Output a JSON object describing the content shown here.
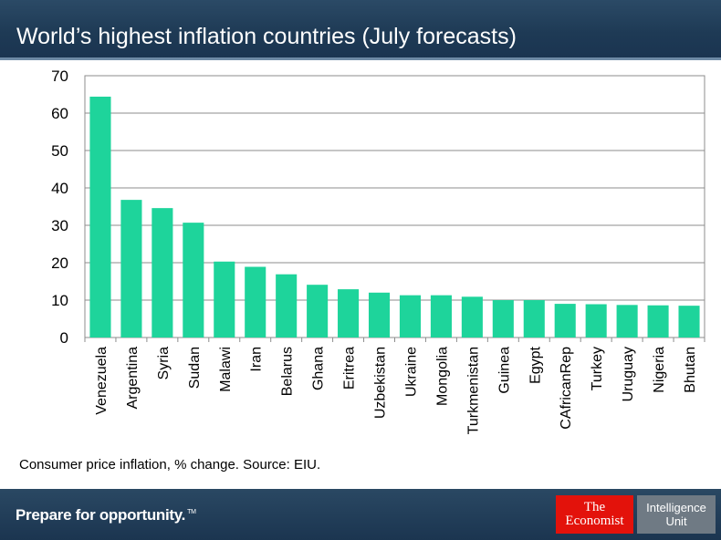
{
  "header": {
    "title": "World’s highest inflation countries (July forecasts)"
  },
  "chart_data": {
    "type": "bar",
    "title": "World’s highest inflation countries (July forecasts)",
    "categories": [
      "Venezuela",
      "Argentina",
      "Syria",
      "Sudan",
      "Malawi",
      "Iran",
      "Belarus",
      "Ghana",
      "Eritrea",
      "Uzbekistan",
      "Ukraine",
      "Mongolia",
      "Turkmenistan",
      "Guinea",
      "Egypt",
      "CAfricanRep",
      "Turkey",
      "Uruguay",
      "Nigeria",
      "Bhutan"
    ],
    "values": [
      64.4,
      36.8,
      34.6,
      30.7,
      20.3,
      18.9,
      16.9,
      14.1,
      12.9,
      12.0,
      11.3,
      11.3,
      10.9,
      10.0,
      10.0,
      9.0,
      8.9,
      8.7,
      8.6,
      8.5
    ],
    "xlabel": "",
    "ylabel": "Consumer price inflation, % change",
    "ylim": [
      0,
      70
    ],
    "yticks": [
      "0",
      "10",
      "20",
      "30",
      "40",
      "50",
      "60",
      "70"
    ],
    "grid": true,
    "legend": "none",
    "bar_color": "#1ed49b"
  },
  "caption": "Consumer price inflation, % change. Source: EIU.",
  "footer": {
    "tagline": "Prepare for opportunity.",
    "tagline_mark": "TM",
    "logo_economist_line1": "The",
    "logo_economist_line2": "Economist",
    "logo_eiu_line1": "Intelligence",
    "logo_eiu_line2": "Unit"
  }
}
